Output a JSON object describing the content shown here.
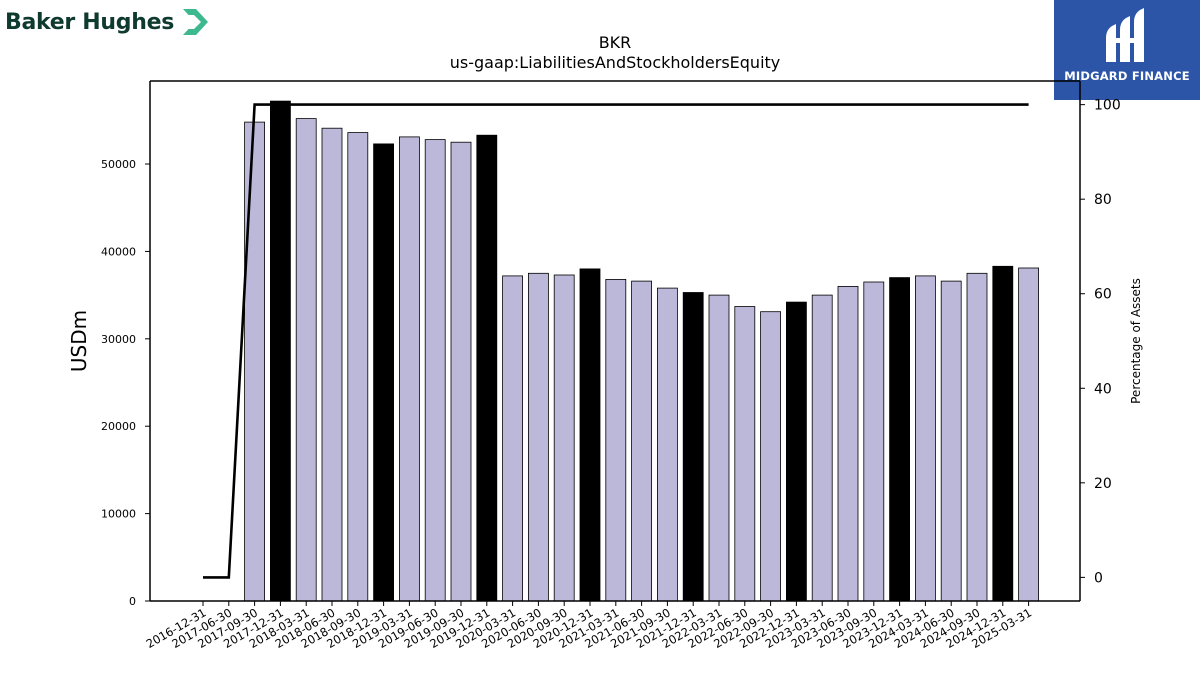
{
  "logos": {
    "left": {
      "text": "Baker Hughes",
      "mark_color": "#3db88f",
      "text_color": "#0f3a2e"
    },
    "right": {
      "text": "MIDGARD FINANCE",
      "bg_color": "#2c55a8"
    }
  },
  "chart_data": {
    "type": "bar",
    "title": "BKR",
    "subtitle": "us-gaap:LiabilitiesAndStockholdersEquity",
    "ylabel": "USDm",
    "y2label": "Percentage of Assets",
    "ylim": [
      0,
      59500
    ],
    "y2lim": [
      -5,
      105
    ],
    "yticks": [
      0,
      10000,
      20000,
      30000,
      40000,
      50000
    ],
    "y2ticks": [
      0,
      20,
      40,
      60,
      80,
      100
    ],
    "categories": [
      "2016-12-31",
      "2017-06-30",
      "2017-09-30",
      "2017-12-31",
      "2018-03-31",
      "2018-06-30",
      "2018-09-30",
      "2018-12-31",
      "2019-03-31",
      "2019-06-30",
      "2019-09-30",
      "2019-12-31",
      "2020-03-31",
      "2020-06-30",
      "2020-09-30",
      "2020-12-31",
      "2021-03-31",
      "2021-06-30",
      "2021-09-30",
      "2021-12-31",
      "2022-03-31",
      "2022-06-30",
      "2022-09-30",
      "2022-12-31",
      "2023-03-31",
      "2023-06-30",
      "2023-09-30",
      "2023-12-31",
      "2024-03-31",
      "2024-06-30",
      "2024-09-30",
      "2024-12-31",
      "2025-03-31"
    ],
    "values": [
      null,
      null,
      54800,
      57200,
      55200,
      54100,
      53600,
      52300,
      53100,
      52800,
      52500,
      53300,
      37200,
      37500,
      37300,
      38000,
      36800,
      36600,
      35800,
      35300,
      35000,
      33700,
      33100,
      34200,
      35000,
      36000,
      36500,
      37000,
      37200,
      36600,
      37500,
      38300,
      38100
    ],
    "highlight": [
      false,
      false,
      false,
      true,
      false,
      false,
      false,
      true,
      false,
      false,
      false,
      true,
      false,
      false,
      false,
      true,
      false,
      false,
      false,
      true,
      false,
      false,
      false,
      true,
      false,
      false,
      false,
      true,
      false,
      false,
      false,
      true,
      false
    ],
    "line_series": {
      "values": [
        0,
        0,
        100,
        100,
        100,
        100,
        100,
        100,
        100,
        100,
        100,
        100,
        100,
        100,
        100,
        100,
        100,
        100,
        100,
        100,
        100,
        100,
        100,
        100,
        100,
        100,
        100,
        100,
        100,
        100,
        100,
        100,
        100
      ]
    },
    "colors": {
      "bar": "#bcb8d9",
      "bar_highlight": "#000000",
      "bar_edge": "#000000",
      "line": "#000000"
    },
    "grid": false,
    "legend": "none"
  }
}
